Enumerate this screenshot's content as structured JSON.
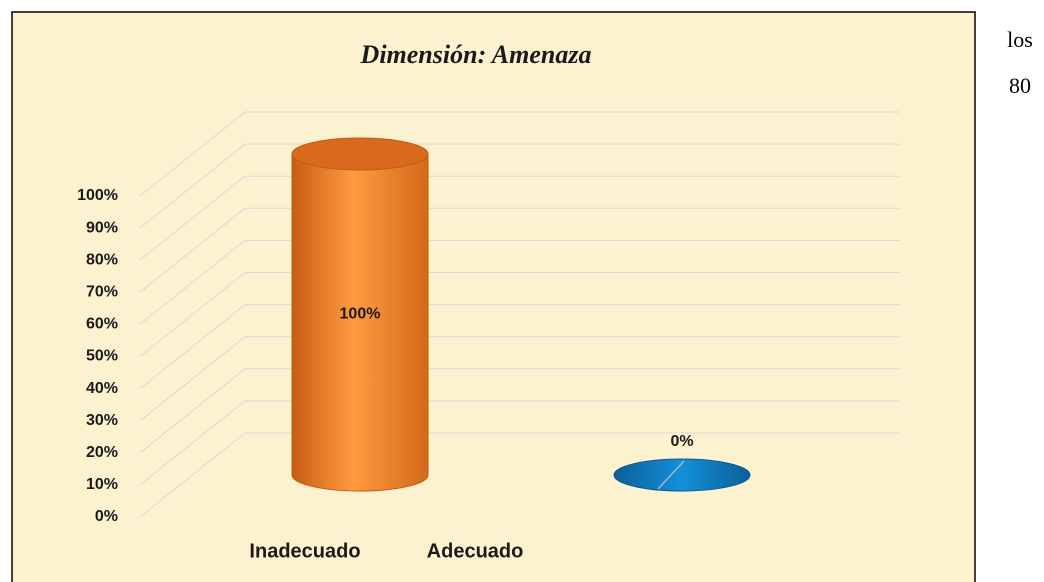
{
  "chart_data": {
    "type": "cylinder",
    "title": "Dimensión: Amenaza",
    "categories": [
      "Inadecuado",
      "Adecuado"
    ],
    "values": [
      100,
      0
    ],
    "value_labels": [
      "100%",
      "0%"
    ],
    "colors": [
      "#f08a2c",
      "#0f7cc2"
    ],
    "ylim": [
      0,
      100
    ],
    "yticks": [
      {
        "value": 0,
        "label": "0%"
      },
      {
        "value": 10,
        "label": "10%"
      },
      {
        "value": 20,
        "label": "20%"
      },
      {
        "value": 30,
        "label": "30%"
      },
      {
        "value": 40,
        "label": "40%"
      },
      {
        "value": 50,
        "label": "50%"
      },
      {
        "value": 60,
        "label": "60%"
      },
      {
        "value": 70,
        "label": "70%"
      },
      {
        "value": 80,
        "label": "80%"
      },
      {
        "value": 90,
        "label": "90%"
      },
      {
        "value": 100,
        "label": "100%"
      }
    ],
    "grid": true
  },
  "page_text": [
    "los",
    "80"
  ]
}
